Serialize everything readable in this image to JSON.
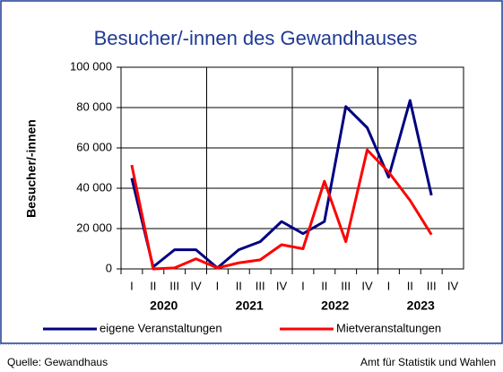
{
  "chart_data": {
    "type": "line",
    "title": "Besucher/-innen  des Gewandhauses",
    "y_label": "Besucher/-innen",
    "categories": [
      "I",
      "II",
      "III",
      "IV",
      "I",
      "II",
      "III",
      "IV",
      "I",
      "II",
      "III",
      "IV",
      "I",
      "II",
      "III",
      "IV"
    ],
    "years": [
      "2020",
      "2021",
      "2022",
      "2023"
    ],
    "series": [
      {
        "name": "eigene Veranstaltungen",
        "color": "#000080",
        "values": [
          45000,
          1000,
          9500,
          9500,
          500,
          9500,
          13500,
          23500,
          17500,
          23500,
          80500,
          70000,
          45500,
          83500,
          36500,
          null
        ]
      },
      {
        "name": "Mietveranstaltungen",
        "color": "#ff0000",
        "values": [
          51500,
          0,
          500,
          5000,
          500,
          3000,
          4500,
          12000,
          10000,
          43500,
          13500,
          59000,
          48000,
          34000,
          17000,
          null
        ]
      }
    ],
    "ylim": [
      0,
      100000
    ],
    "yticks": [
      0,
      {
        "value": 20000,
        "label": "20 000"
      },
      {
        "value": 40000,
        "label": "40 000"
      },
      {
        "value": 60000,
        "label": "60 000"
      },
      {
        "value": 80000,
        "label": "80 000"
      },
      {
        "value": 100000,
        "label": "100 000"
      }
    ],
    "grid": true,
    "source": "Quelle: Gewandhaus",
    "publisher": "Amt für Statistik und Wahlen"
  }
}
